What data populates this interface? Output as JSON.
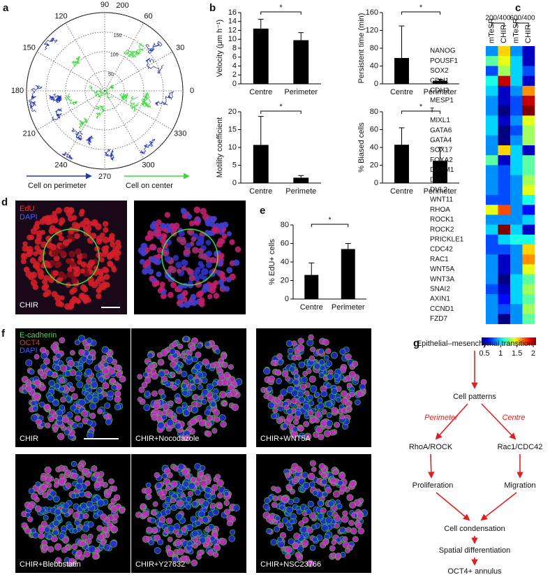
{
  "panel_labels": [
    "a",
    "b",
    "c",
    "d",
    "e",
    "f",
    "g"
  ],
  "chart_data": [
    {
      "type": "polar",
      "angle_ticks": [
        0,
        30,
        60,
        90,
        120,
        150,
        180,
        210,
        240,
        270,
        300,
        330
      ],
      "rlim": [
        0,
        200
      ],
      "radial_ticks": [
        50,
        100,
        150,
        200
      ],
      "series": [
        {
          "name": "Cell on perimeter",
          "color": "#2233bb"
        },
        {
          "name": "Cell on  center",
          "color": "#33dd33"
        }
      ]
    },
    {
      "type": "bar",
      "ylabel": "Velocity (μm h⁻¹)",
      "categories": [
        "Centre",
        "Perimeter"
      ],
      "values": [
        12.4,
        9.8
      ],
      "errors": [
        2.1,
        1.7
      ],
      "ylim": [
        0,
        16
      ],
      "yticks": [
        0,
        2,
        4,
        6,
        8,
        10,
        12,
        14,
        16
      ],
      "annotation": "*",
      "color": "#000000"
    },
    {
      "type": "bar",
      "ylabel": "Persistent time (min)",
      "categories": [
        "Centre",
        "Perimeter"
      ],
      "values": [
        58,
        7
      ],
      "errors": [
        72,
        3
      ],
      "ylim": [
        0,
        160
      ],
      "yticks": [
        0,
        40,
        80,
        120,
        160
      ],
      "annotation": "*",
      "color": "#000000"
    },
    {
      "type": "bar",
      "ylabel": "Motility coefficient",
      "categories": [
        "Centre",
        "Perimete"
      ],
      "values": [
        10.7,
        1.5
      ],
      "errors": [
        8,
        0.6
      ],
      "ylim": [
        0,
        20
      ],
      "yticks": [
        0,
        5,
        10,
        15,
        20
      ],
      "annotation": "*",
      "color": "#000000"
    },
    {
      "type": "bar",
      "ylabel": "% Biased cells",
      "categories": [
        "Centre",
        "Perimeter"
      ],
      "values": [
        43,
        25
      ],
      "errors": [
        19,
        15
      ],
      "ylim": [
        0,
        80
      ],
      "yticks": [
        0,
        20,
        40,
        60,
        80
      ],
      "annotation": "*",
      "color": "#000000"
    },
    {
      "type": "heatmap",
      "column_groups": [
        "200/400",
        "600/400"
      ],
      "columns": [
        "mTeSR",
        "CHIR",
        "mTeSR",
        "CHIR"
      ],
      "rows": [
        "NANOG",
        "POUSF1",
        "SOX2",
        "CDH1",
        "CDH2",
        "MESP1",
        "T",
        "MIXL1",
        "GATA6",
        "GATA4",
        "SOX17",
        "FOXA2",
        "DAAM1",
        "DVL1",
        "DVL2",
        "WNT11",
        "RHOA",
        "ROCK1",
        "ROCK2",
        "PRICKLE1",
        "CDC42",
        "RAC1",
        "WNT5A",
        "WNT3A",
        "SNAI2",
        "AXIN1",
        "CCND1",
        "FZD7"
      ],
      "values": [
        [
          0.9,
          1.5,
          0.9,
          0.6
        ],
        [
          1.2,
          1.4,
          1.0,
          0.6
        ],
        [
          0.8,
          1.3,
          1.0,
          0.8
        ],
        [
          1.1,
          1.9,
          1.0,
          0.6
        ],
        [
          1.0,
          0.6,
          0.9,
          1.6
        ],
        [
          0.9,
          0.6,
          0.8,
          1.9
        ],
        [
          0.9,
          0.5,
          0.8,
          2.0
        ],
        [
          1.0,
          0.6,
          0.9,
          1.4
        ],
        [
          1.0,
          0.5,
          0.8,
          1.3
        ],
        [
          0.9,
          0.5,
          0.9,
          1.3
        ],
        [
          0.9,
          1.5,
          1.0,
          0.6
        ],
        [
          1.2,
          0.6,
          1.0,
          1.2
        ],
        [
          0.9,
          0.8,
          1.0,
          1.2
        ],
        [
          0.9,
          0.8,
          0.9,
          1.3
        ],
        [
          0.9,
          0.8,
          0.9,
          1.4
        ],
        [
          0.8,
          0.8,
          0.9,
          1.1
        ],
        [
          1.4,
          1.7,
          0.9,
          0.7
        ],
        [
          0.9,
          0.9,
          0.9,
          1.0
        ],
        [
          1.0,
          2.0,
          1.0,
          0.6
        ],
        [
          0.8,
          1.0,
          1.1,
          1.1
        ],
        [
          0.8,
          0.8,
          0.9,
          1.5
        ],
        [
          0.9,
          0.6,
          0.9,
          1.6
        ],
        [
          0.9,
          0.6,
          0.9,
          1.4
        ],
        [
          0.9,
          0.5,
          1.0,
          1.2
        ],
        [
          0.8,
          0.6,
          1.0,
          1.3
        ],
        [
          0.9,
          0.7,
          1.0,
          1.2
        ],
        [
          0.9,
          0.8,
          0.9,
          1.3
        ],
        [
          0.9,
          0.5,
          0.9,
          1.2
        ]
      ],
      "zlim": [
        0.5,
        2
      ],
      "colorbar_ticks": [
        0.5,
        1,
        1.5,
        2
      ]
    },
    {
      "type": "bar",
      "ylabel": "% EdU+ cells",
      "categories": [
        "Centre",
        "Perimeter"
      ],
      "values": [
        26,
        54
      ],
      "errors": [
        13,
        6
      ],
      "ylim": [
        0,
        80
      ],
      "yticks": [
        0,
        20,
        40,
        60,
        80
      ],
      "annotation": "*",
      "color": "#000000"
    }
  ],
  "images_d": {
    "stains": [
      "EdU",
      "DAPI"
    ],
    "caption": "CHIR"
  },
  "images_f": {
    "stains": [
      "E-cadherin",
      "OCT4",
      "DAPI"
    ],
    "captions": [
      "CHIR",
      "CHIR+Nocodazole",
      "CHIR+WNT5A",
      "CHIR+Blebbstatin",
      "CHIR+Y27632",
      "CHIR+NSC23766"
    ]
  },
  "diagram": {
    "nodes": [
      "Epithelial–mesenchymal transition",
      "Cell patterns",
      "RhoA/ROCK",
      "Rac1/CDC42",
      "Proliferation",
      "Migration",
      "Cell condensation",
      "Spatial differentiation",
      "OCT4+ annulus"
    ],
    "edge_labels": [
      "Perimeter",
      "Centre"
    ]
  }
}
